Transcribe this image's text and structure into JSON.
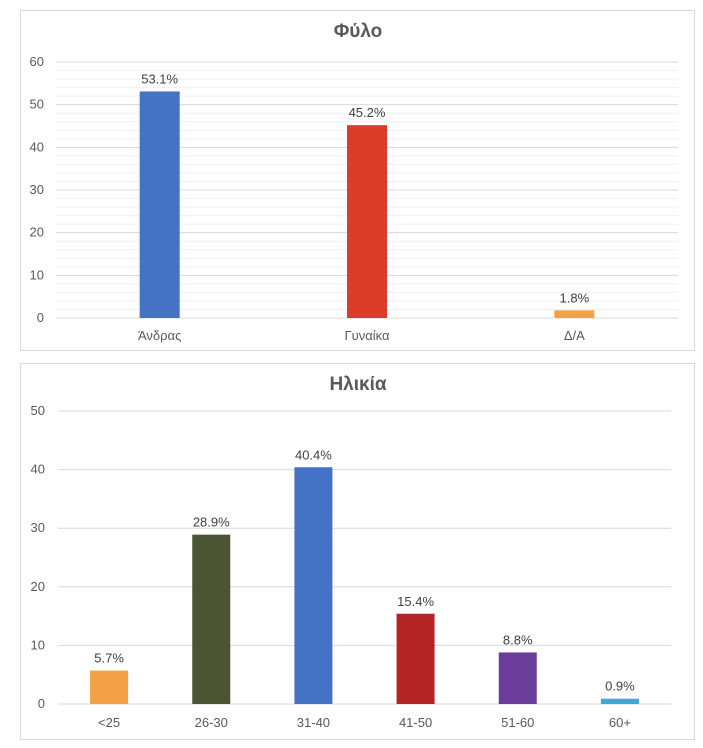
{
  "chart_data": [
    {
      "type": "bar",
      "title": "Φύλο",
      "categories": [
        "Άνδρας",
        "Γυναίκα",
        "Δ/Α"
      ],
      "values": [
        53.1,
        45.2,
        1.8
      ],
      "data_labels": [
        "53.1%",
        "45.2%",
        "1.8%"
      ],
      "colors": [
        "#4472c4",
        "#dc3d2a",
        "#f4a045"
      ],
      "ylim": [
        0,
        60
      ],
      "yticks": [
        0,
        10,
        20,
        30,
        40,
        50,
        60
      ],
      "grid": true,
      "minor_grid": true,
      "legend": "none"
    },
    {
      "type": "bar",
      "title": "Ηλικία",
      "categories": [
        "<25",
        "26-30",
        "31-40",
        "41-50",
        "51-60",
        "60+"
      ],
      "values": [
        5.7,
        28.9,
        40.4,
        15.4,
        8.8,
        0.9
      ],
      "data_labels": [
        "5.7%",
        "28.9%",
        "40.4%",
        "15.4%",
        "8.8%",
        "0.9%"
      ],
      "colors": [
        "#f4a045",
        "#4b5533",
        "#4472c4",
        "#b42424",
        "#6a3d9a",
        "#3fa7d6"
      ],
      "ylim": [
        0,
        50
      ],
      "yticks": [
        0,
        10,
        20,
        30,
        40,
        50
      ],
      "grid": true,
      "minor_grid": false,
      "legend": "none"
    }
  ]
}
